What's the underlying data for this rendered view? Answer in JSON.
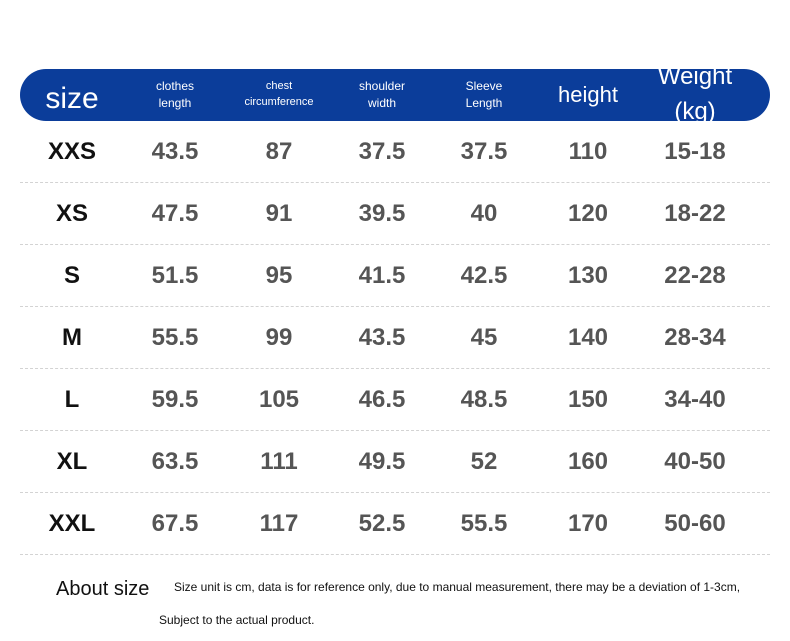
{
  "colors": {
    "header_bg": "#0b3d9a",
    "header_text": "#ffffff",
    "size_text": "#111111",
    "value_text": "#555555"
  },
  "header": [
    {
      "lines": [
        "size"
      ]
    },
    {
      "lines": [
        "clothes",
        "length"
      ]
    },
    {
      "lines": [
        "chest",
        "circumference"
      ]
    },
    {
      "lines": [
        "shoulder",
        "width"
      ]
    },
    {
      "lines": [
        "Sleeve",
        "Length"
      ]
    },
    {
      "lines": [
        "height"
      ]
    },
    {
      "lines": [
        "Weight (kg)"
      ]
    }
  ],
  "rows": [
    [
      "XXS",
      "43.5",
      "87",
      "37.5",
      "37.5",
      "110",
      "15-18"
    ],
    [
      "XS",
      "47.5",
      "91",
      "39.5",
      "40",
      "120",
      "18-22"
    ],
    [
      "S",
      "51.5",
      "95",
      "41.5",
      "42.5",
      "130",
      "22-28"
    ],
    [
      "M",
      "55.5",
      "99",
      "43.5",
      "45",
      "140",
      "28-34"
    ],
    [
      "L",
      "59.5",
      "105",
      "46.5",
      "48.5",
      "150",
      "34-40"
    ],
    [
      "XL",
      "63.5",
      "111",
      "49.5",
      "52",
      "160",
      "40-50"
    ],
    [
      "XXL",
      "67.5",
      "117",
      "52.5",
      "55.5",
      "170",
      "50-60"
    ]
  ],
  "about": {
    "title": "About size",
    "line1": "Size unit is cm, data is for reference only, due to manual measurement, there may be a deviation of 1-3cm,",
    "line2": "Subject to the actual product."
  }
}
